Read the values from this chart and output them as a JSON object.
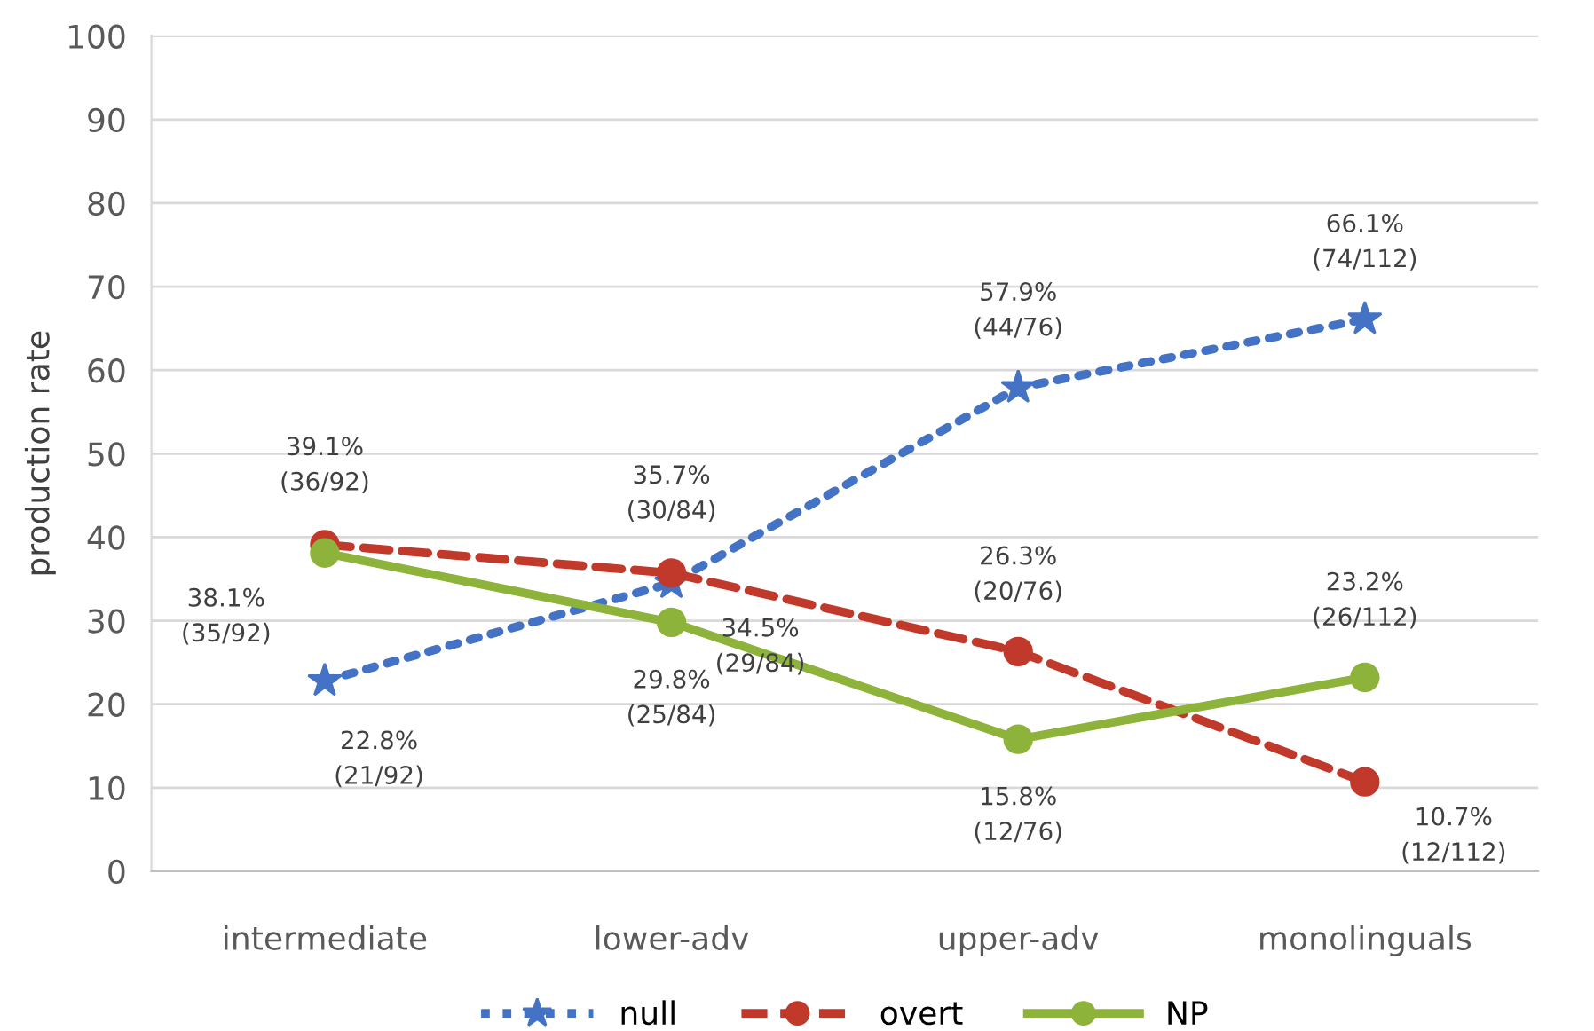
{
  "chart_data": {
    "type": "line",
    "ylabel": "production rate",
    "categories": [
      "intermediate",
      "lower-adv",
      "upper-adv",
      "monolinguals"
    ],
    "ylim": [
      0,
      100
    ],
    "yticks": [
      0,
      10,
      20,
      30,
      40,
      50,
      60,
      70,
      80,
      90,
      100
    ],
    "grid": "y",
    "legend": "bottom",
    "series": [
      {
        "name": "null",
        "color": "#4472c4",
        "marker": "star",
        "line_style": "dotted",
        "values": [
          22.8,
          34.5,
          57.9,
          66.1
        ],
        "value_labels": [
          "22.8%\n(21/92)",
          "34.5%\n(29/84)",
          "57.9%\n(44/76)",
          "66.1%\n(74/112)"
        ]
      },
      {
        "name": "overt",
        "color": "#c0392b",
        "marker": "circle",
        "line_style": "dashed",
        "values": [
          39.1,
          35.7,
          26.3,
          10.7
        ],
        "value_labels": [
          "39.1%\n(36/92)",
          "35.7%\n(30/84)",
          "26.3%\n(20/76)",
          "10.7%\n(12/112)"
        ]
      },
      {
        "name": "NP",
        "color": "#8db33a",
        "marker": "circle",
        "line_style": "solid",
        "values": [
          38.1,
          29.8,
          15.8,
          23.2
        ],
        "value_labels": [
          "38.1%\n(35/92)",
          "29.8%\n(25/84)",
          "15.8%\n(12/76)",
          "23.2%\n(26/112)"
        ]
      }
    ]
  }
}
